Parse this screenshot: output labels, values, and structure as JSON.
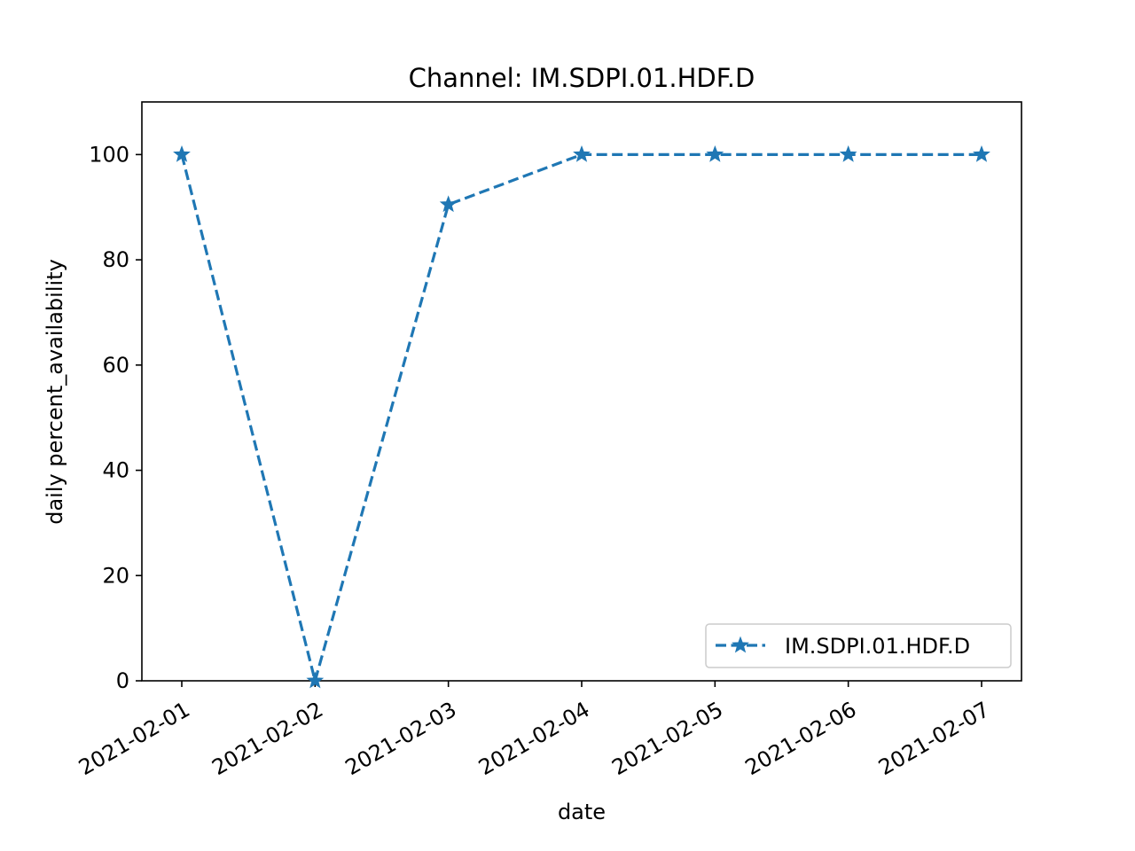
{
  "chart_data": {
    "type": "line",
    "title": "Channel: IM.SDPI.01.HDF.D",
    "xlabel": "date",
    "ylabel": "daily percent_availability",
    "x": [
      "2021-02-01",
      "2021-02-02",
      "2021-02-03",
      "2021-02-04",
      "2021-02-05",
      "2021-02-06",
      "2021-02-07"
    ],
    "yticks": [
      "0",
      "20",
      "40",
      "60",
      "80",
      "100"
    ],
    "ylim": [
      0,
      110
    ],
    "grid": false,
    "legend_position": "lower right",
    "series": [
      {
        "name": "IM.SDPI.01.HDF.D",
        "values": [
          100,
          0,
          90.5,
          100,
          100,
          100,
          100
        ],
        "color": "#1f77b4",
        "linestyle": "dashed",
        "marker": "star"
      }
    ]
  }
}
